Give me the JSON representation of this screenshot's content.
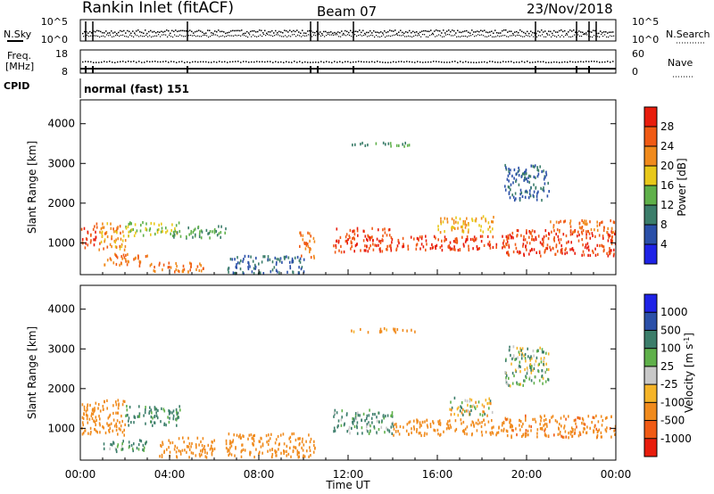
{
  "header": {
    "station": "Rankin Inlet (fitACF)",
    "beam": "Beam 07",
    "date": "23/Nov/2018"
  },
  "noise_panel": {
    "left_label": "N.Sky",
    "right_label": "N.Search",
    "tick_top": "10^5",
    "tick_bottom": "10^0"
  },
  "freq_panel": {
    "left_label_line1": "Freq.",
    "left_label_line2": "[MHz]",
    "right_label": "Nave",
    "left_ticks": [
      "18",
      "8"
    ],
    "right_ticks": [
      "60",
      "0"
    ]
  },
  "cpid_panel": {
    "label": "CPID",
    "text": "normal (fast) 151"
  },
  "x_axis": {
    "label": "Time UT",
    "ticks": [
      "00:00",
      "04:00",
      "08:00",
      "12:00",
      "16:00",
      "20:00",
      "00:00"
    ]
  },
  "colors": {
    "power": [
      "#1e22e6",
      "#2a4fa8",
      "#3b7d6a",
      "#5fb04a",
      "#e8c81a",
      "#f08a1c",
      "#f05a14",
      "#e81c0c"
    ],
    "velocity": [
      "#e81c0c",
      "#f05a14",
      "#f08a1c",
      "#f5b428",
      "#c8c8c8",
      "#5fb04a",
      "#3b7d6a",
      "#2a4fa8",
      "#1e22e6"
    ]
  },
  "chart_data": [
    {
      "type": "heatmap",
      "title": "Power",
      "ylabel": "Slant Range [km]",
      "xlabel": "",
      "y_ticks": [
        "1000",
        "2000",
        "3000",
        "4000"
      ],
      "ylim": [
        200,
        4600
      ],
      "xlim": [
        0,
        24
      ],
      "colorbar": {
        "label": "Power [dB]",
        "ticks": [
          "4",
          "8",
          "12",
          "16",
          "20",
          "24",
          "28"
        ],
        "range": [
          0,
          32
        ]
      },
      "regions": [
        {
          "t": [
            0.0,
            0.7
          ],
          "r": [
            900,
            1450
          ],
          "value": 28
        },
        {
          "t": [
            0.7,
            2.0
          ],
          "r": [
            850,
            1550
          ],
          "value": 22
        },
        {
          "t": [
            1.0,
            3.0
          ],
          "r": [
            450,
            750
          ],
          "value": 24
        },
        {
          "t": [
            2.0,
            4.5
          ],
          "r": [
            1200,
            1550
          ],
          "value": 16
        },
        {
          "t": [
            3.0,
            5.5
          ],
          "r": [
            300,
            550
          ],
          "value": 24
        },
        {
          "t": [
            4.0,
            6.5
          ],
          "r": [
            1150,
            1450
          ],
          "value": 12
        },
        {
          "t": [
            6.5,
            10.0
          ],
          "r": [
            250,
            700
          ],
          "value": 8
        },
        {
          "t": [
            9.8,
            10.5
          ],
          "r": [
            650,
            1300
          ],
          "value": 24
        },
        {
          "t": [
            11.3,
            14.0
          ],
          "r": [
            800,
            1400
          ],
          "value": 28
        },
        {
          "t": [
            14.0,
            19.5
          ],
          "r": [
            850,
            1200
          ],
          "value": 28
        },
        {
          "t": [
            16.0,
            18.5
          ],
          "r": [
            1300,
            1700
          ],
          "value": 20
        },
        {
          "t": [
            19.0,
            24.0
          ],
          "r": [
            700,
            1350
          ],
          "value": 28
        },
        {
          "t": [
            21.0,
            24.0
          ],
          "r": [
            1300,
            1600
          ],
          "value": 24
        },
        {
          "t": [
            19.0,
            21.0
          ],
          "r": [
            2100,
            3000
          ],
          "value": 8
        },
        {
          "t": [
            12.0,
            15.0
          ],
          "r": [
            3450,
            3550
          ],
          "value": 12
        }
      ]
    },
    {
      "type": "heatmap",
      "title": "Velocity",
      "ylabel": "Slant Range [km]",
      "xlabel": "Time UT",
      "y_ticks": [
        "1000",
        "2000",
        "3000",
        "4000"
      ],
      "ylim": [
        200,
        4600
      ],
      "xlim": [
        0,
        24
      ],
      "colorbar": {
        "label": "Velocity [m s^-1]",
        "ticks": [
          "1000",
          "500",
          "100",
          "25",
          "-25",
          "-100",
          "-500",
          "-1000"
        ]
      },
      "regions": [
        {
          "t": [
            0.0,
            2.0
          ],
          "r": [
            850,
            1750
          ],
          "value": -300
        },
        {
          "t": [
            2.0,
            4.5
          ],
          "r": [
            1100,
            1600
          ],
          "value": 200
        },
        {
          "t": [
            1.0,
            3.0
          ],
          "r": [
            450,
            750
          ],
          "value": 150
        },
        {
          "t": [
            3.5,
            6.0
          ],
          "r": [
            300,
            800
          ],
          "value": -300
        },
        {
          "t": [
            6.5,
            10.5
          ],
          "r": [
            300,
            900
          ],
          "value": -300
        },
        {
          "t": [
            11.3,
            14.0
          ],
          "r": [
            900,
            1500
          ],
          "value": 150
        },
        {
          "t": [
            14.0,
            19.0
          ],
          "r": [
            850,
            1250
          ],
          "value": -300
        },
        {
          "t": [
            16.5,
            18.5
          ],
          "r": [
            1350,
            1800
          ],
          "value": 0
        },
        {
          "t": [
            19.0,
            24.0
          ],
          "r": [
            800,
            1350
          ],
          "value": -400
        },
        {
          "t": [
            19.0,
            21.0
          ],
          "r": [
            2100,
            3100
          ],
          "value": 60
        },
        {
          "t": [
            12.0,
            15.0
          ],
          "r": [
            3450,
            3550
          ],
          "value": -200
        }
      ]
    }
  ]
}
